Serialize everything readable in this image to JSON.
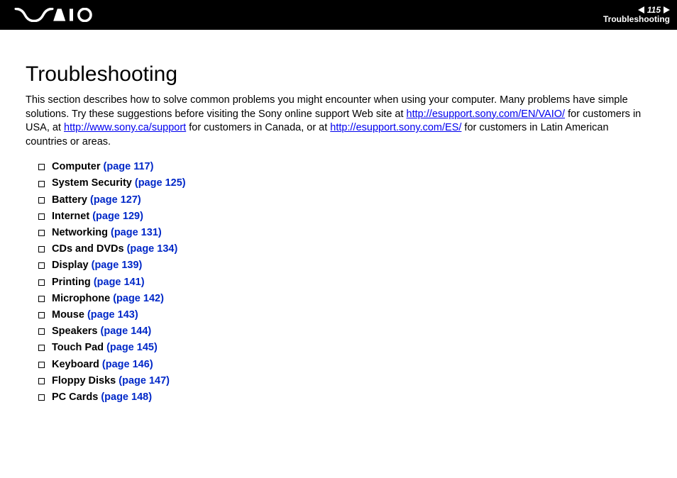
{
  "header": {
    "page_number": "115",
    "section_label": "Troubleshooting"
  },
  "title": "Troubleshooting",
  "intro": {
    "t1": "This section describes how to solve common problems you might encounter when using your computer. Many problems have simple solutions. Try these suggestions before visiting the Sony online support Web site at ",
    "link1": "http://esupport.sony.com/EN/VAIO/",
    "t2": " for customers in USA, at ",
    "link2": "http://www.sony.ca/support",
    "t3": " for customers in Canada, or at ",
    "link3": "http://esupport.sony.com/ES/",
    "t4": " for customers in Latin American countries or areas."
  },
  "topics": [
    {
      "label": "Computer",
      "page_ref": "(page 117)"
    },
    {
      "label": "System Security",
      "page_ref": "(page 125)"
    },
    {
      "label": "Battery",
      "page_ref": "(page 127)"
    },
    {
      "label": "Internet",
      "page_ref": "(page 129)"
    },
    {
      "label": "Networking",
      "page_ref": "(page 131)"
    },
    {
      "label": "CDs and DVDs",
      "page_ref": "(page 134)"
    },
    {
      "label": "Display",
      "page_ref": "(page 139)"
    },
    {
      "label": "Printing",
      "page_ref": "(page 141)"
    },
    {
      "label": "Microphone",
      "page_ref": "(page 142)"
    },
    {
      "label": "Mouse",
      "page_ref": "(page 143)"
    },
    {
      "label": "Speakers",
      "page_ref": "(page 144)"
    },
    {
      "label": "Touch Pad",
      "page_ref": "(page 145)"
    },
    {
      "label": "Keyboard",
      "page_ref": "(page 146)"
    },
    {
      "label": "Floppy Disks",
      "page_ref": "(page 147)"
    },
    {
      "label": "PC Cards",
      "page_ref": "(page 148)"
    }
  ],
  "colors": {
    "header_bg": "#000000",
    "header_fg": "#ffffff",
    "body_bg": "#ffffff",
    "text": "#000000",
    "link": "#0000ee",
    "page_ref": "#0028c8"
  },
  "typography": {
    "title_fontsize": 30,
    "body_fontsize": 14.5,
    "header_fontsize": 12
  }
}
